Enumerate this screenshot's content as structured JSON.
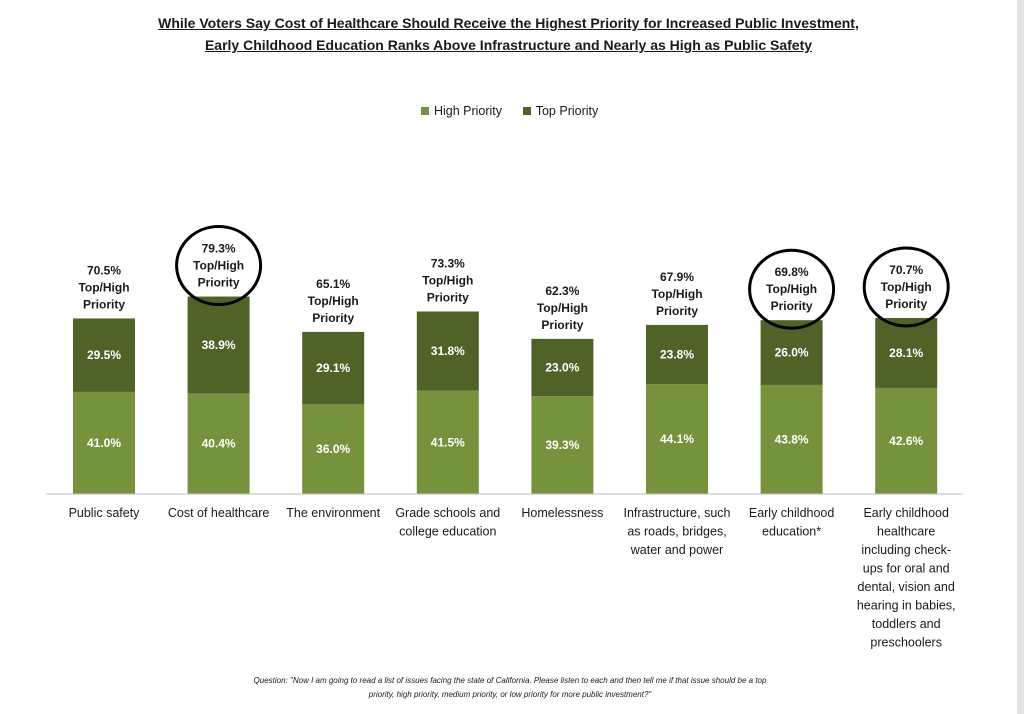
{
  "title_line1": "While Voters Say Cost of Healthcare Should Receive the Highest Priority for Increased Public Investment,",
  "title_line2": "Early Childhood Education Ranks Above Infrastructure and Nearly as High as Public Safety",
  "footnote_line1": "Question: \"Now I am going to read a list of issues facing the state of California.  Please listen to each and then tell me if that issue should be a top",
  "footnote_line2": "priority, high priority, medium priority, or low priority for more public investment?\"",
  "chart_data": {
    "type": "bar",
    "stacked": true,
    "legend": [
      "High Priority",
      "Top Priority"
    ],
    "legend_position": "top-center",
    "colors": {
      "High Priority": "#76923c",
      "Top Priority": "#4f6228"
    },
    "categories": [
      [
        "Public safety"
      ],
      [
        "Cost of healthcare"
      ],
      [
        "The environment"
      ],
      [
        "Grade schools and",
        "college education"
      ],
      [
        "Homelessness"
      ],
      [
        "Infrastructure, such",
        "as roads, bridges,",
        "water and power"
      ],
      [
        "Early childhood",
        "education*"
      ],
      [
        "Early childhood",
        "healthcare",
        "including check-",
        "ups for oral and",
        "dental, vision and",
        "hearing in babies,",
        "toddlers and",
        "preschoolers"
      ]
    ],
    "series": [
      {
        "name": "High Priority",
        "values": [
          41.0,
          40.4,
          36.0,
          41.5,
          39.3,
          44.1,
          43.8,
          42.6
        ],
        "labels": [
          "41.0%",
          "40.4%",
          "36.0%",
          "41.5%",
          "39.3%",
          "44.1%",
          "43.8%",
          "42.6%"
        ]
      },
      {
        "name": "Top Priority",
        "values": [
          29.5,
          38.9,
          29.1,
          31.8,
          23.0,
          23.8,
          26.0,
          28.1
        ],
        "labels": [
          "29.5%",
          "38.9%",
          "29.1%",
          "31.8%",
          "23.0%",
          "23.8%",
          "26.0%",
          "28.1%"
        ]
      }
    ],
    "totals": [
      [
        "70.5%",
        "Top/High",
        "Priority"
      ],
      [
        "79.3%",
        "Top/High",
        "Priority"
      ],
      [
        "65.1%",
        "Top/High",
        "Priority"
      ],
      [
        "73.3%",
        "Top/High",
        "Priority"
      ],
      [
        "62.3%",
        "Top/High",
        "Priority"
      ],
      [
        "67.9%",
        "Top/High",
        "Priority"
      ],
      [
        "69.8%",
        "Top/High",
        "Priority"
      ],
      [
        "70.7%",
        "Top/High",
        "Priority"
      ]
    ],
    "circled": [
      false,
      true,
      false,
      false,
      false,
      false,
      true,
      true
    ],
    "ylim": [
      0,
      100
    ],
    "grid": false
  }
}
